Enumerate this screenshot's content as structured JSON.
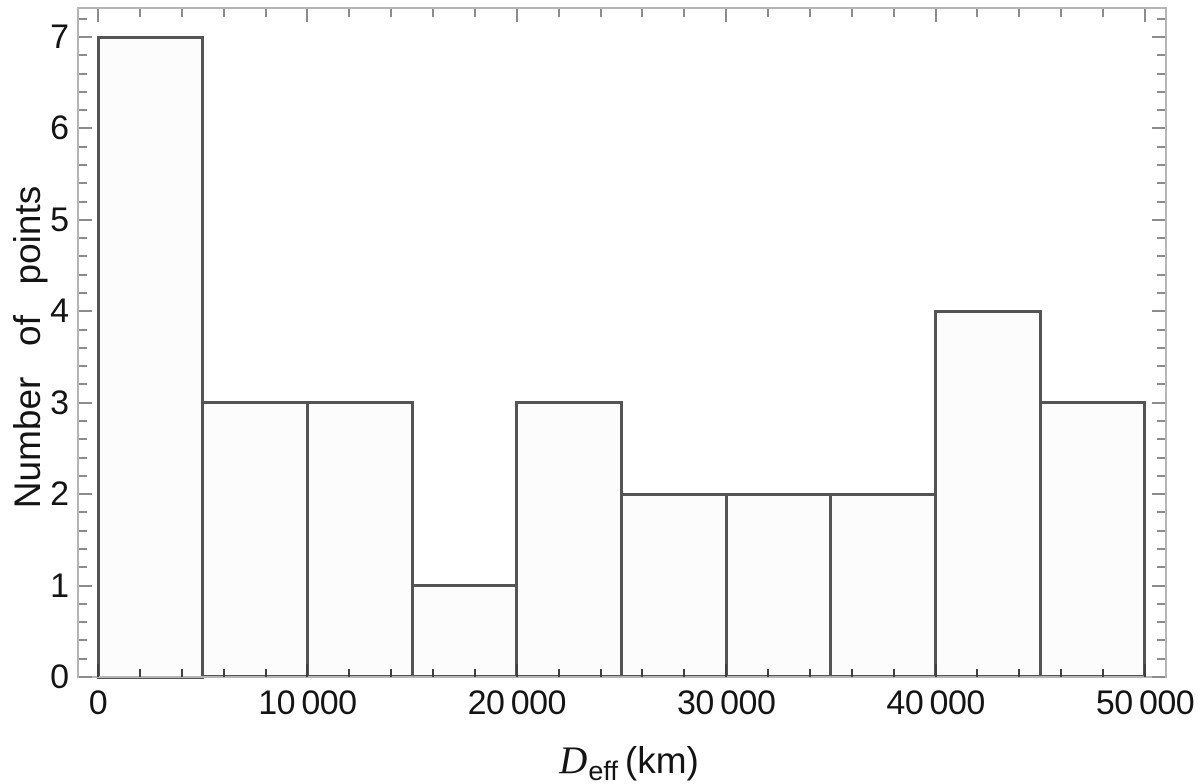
{
  "figure": {
    "background": "#ffffff",
    "ylabel": "Number of points",
    "xlabel": {
      "variable": "D",
      "subscript": "eff",
      "unit": "(km)"
    }
  },
  "chart_data": {
    "type": "bar",
    "subtype": "histogram",
    "title": "",
    "xlabel": "D_eff (km)",
    "ylabel": "Number of points",
    "bin_edges": [
      0,
      5000,
      10000,
      15000,
      20000,
      25000,
      30000,
      35000,
      40000,
      45000,
      50000
    ],
    "counts": [
      7,
      3,
      3,
      1,
      3,
      2,
      2,
      2,
      4,
      3
    ],
    "xlim": [
      0,
      50000
    ],
    "ylim": [
      0,
      7
    ],
    "grid": false,
    "legend": null,
    "frame": true,
    "x_major_ticks": [
      0,
      10000,
      20000,
      30000,
      40000,
      50000
    ],
    "x_major_tick_labels": [
      "0",
      "10 000",
      "20 000",
      "30 000",
      "40 000",
      "50 000"
    ],
    "x_minor_tick_step": 2000,
    "y_major_ticks": [
      0,
      1,
      2,
      3,
      4,
      5,
      6,
      7
    ],
    "y_major_tick_labels": [
      "0",
      "1",
      "2",
      "3",
      "4",
      "5",
      "6",
      "7"
    ],
    "y_minor_tick_step": 0.2,
    "colors": {
      "bar_fill": "#fcfcfc",
      "bar_edge": "#545454",
      "frame": "#b5b5b5",
      "ticks_bottom": "#3f3f3f",
      "ticks_other": "#8c8c8c",
      "text": "#141414"
    }
  }
}
